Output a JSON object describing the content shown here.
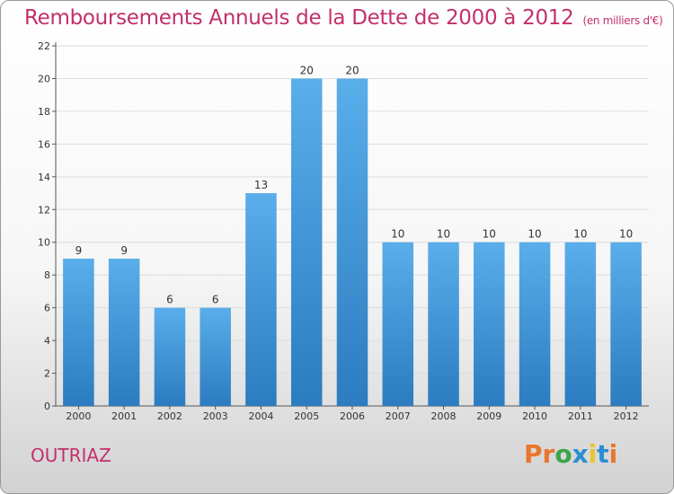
{
  "header": {
    "title": "Remboursements Annuels de la Dette de 2000 à 2012",
    "subtitle": "(en milliers d'€)"
  },
  "footer": {
    "city": "OUTRIAZ",
    "logo_text": "Proxiti",
    "logo_colors": [
      "#e8762b",
      "#e8762b",
      "#3aa54a",
      "#2a8fd0",
      "#e8c52b",
      "#2a8fd0",
      "#e8762b"
    ]
  },
  "chart_data": {
    "type": "bar",
    "title": "Remboursements Annuels de la Dette de 2000 à 2012",
    "ylabel": "en milliers d'€",
    "xlabel": "",
    "categories": [
      "2000",
      "2001",
      "2002",
      "2003",
      "2004",
      "2005",
      "2006",
      "2007",
      "2008",
      "2009",
      "2010",
      "2011",
      "2012"
    ],
    "values": [
      9,
      9,
      6,
      6,
      13,
      20,
      20,
      10,
      10,
      10,
      10,
      10,
      10
    ],
    "ylim": [
      0,
      22
    ],
    "yticks": [
      0,
      2,
      4,
      6,
      8,
      10,
      12,
      14,
      16,
      18,
      20,
      22
    ],
    "grid": true,
    "bar_color_top": "#5aaeea",
    "bar_color_bottom": "#2b7cc0"
  }
}
